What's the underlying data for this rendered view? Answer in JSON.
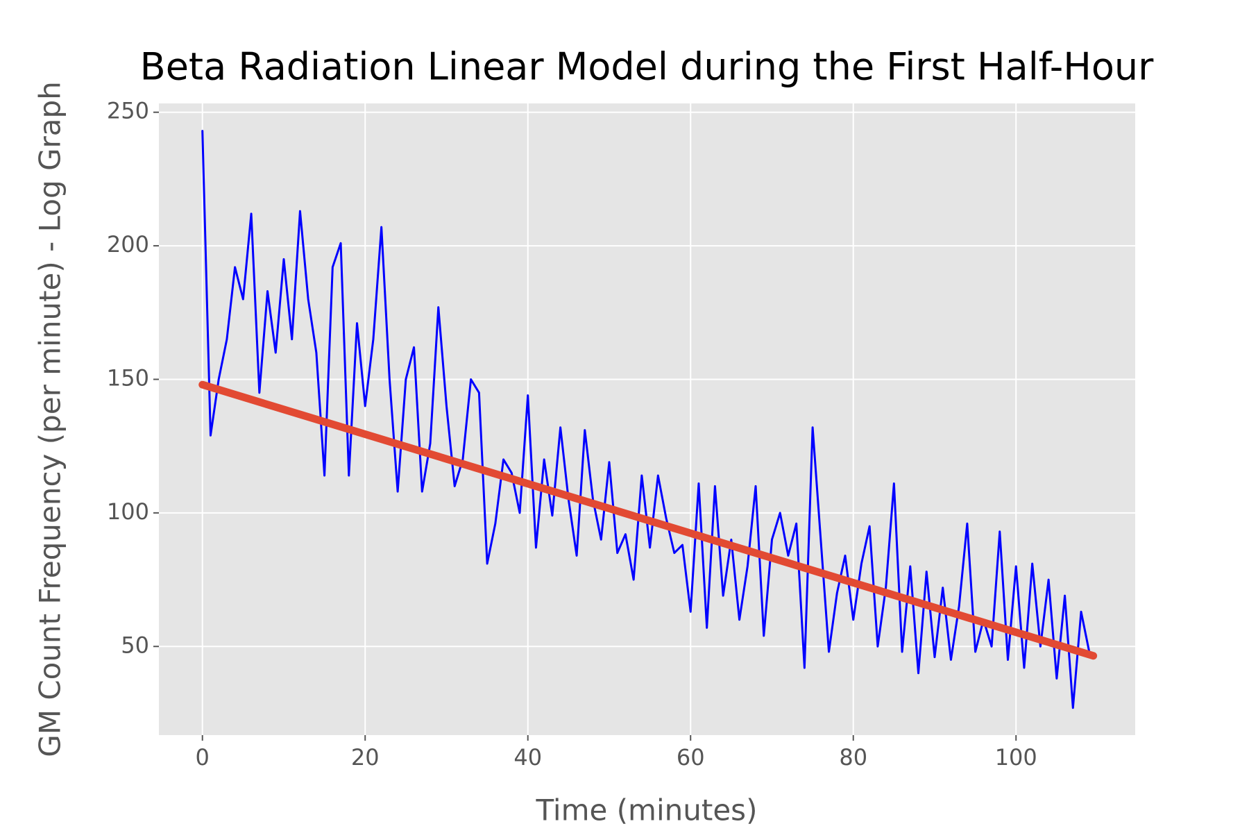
{
  "chart_data": {
    "type": "line",
    "title": "Beta Radiation Linear Model during the First Half-Hour",
    "x_label": "Time (minutes)",
    "y_label": "GM Count Frequency (per minute) - Log Graph",
    "xlim": [
      -5.35,
      114.65
    ],
    "xticks": [
      0,
      20,
      40,
      60,
      80,
      100
    ],
    "ylim": [
      16.8,
      253.3
    ],
    "yticks": [
      50,
      100,
      150,
      200,
      250
    ],
    "grid": true,
    "background": "#e5e5e5",
    "series": [
      {
        "color": "#0000ff",
        "width": 3,
        "x": [
          0,
          1,
          2,
          3,
          4,
          5,
          6,
          7,
          8,
          9,
          10,
          11,
          12,
          13,
          14,
          15,
          16,
          17,
          18,
          19,
          20,
          21,
          22,
          23,
          24,
          25,
          26,
          27,
          28,
          29,
          30,
          31,
          32,
          33,
          34,
          35,
          36,
          37,
          38,
          39,
          40,
          41,
          42,
          43,
          44,
          45,
          46,
          47,
          48,
          49,
          50,
          51,
          52,
          53,
          54,
          55,
          56,
          57,
          58,
          59,
          60,
          61,
          62,
          63,
          64,
          65,
          66,
          67,
          68,
          69,
          70,
          71,
          72,
          73,
          74,
          75,
          76,
          77,
          78,
          79,
          80,
          81,
          82,
          83,
          84,
          85,
          86,
          87,
          88,
          89,
          90,
          91,
          92,
          93,
          94,
          95,
          96,
          97,
          98,
          99,
          100,
          101,
          102,
          103,
          104,
          105,
          106,
          107,
          108,
          109
        ],
        "values": [
          243,
          129,
          150,
          165,
          192,
          180,
          212,
          145,
          183,
          160,
          195,
          165,
          213,
          180,
          160,
          114,
          192,
          201,
          114,
          171,
          140,
          165,
          207,
          150,
          108,
          150,
          162,
          108,
          126,
          177,
          140,
          110,
          120,
          150,
          145,
          81,
          96,
          120,
          115,
          100,
          144,
          87,
          120,
          99,
          132,
          105,
          84,
          131,
          105,
          90,
          119,
          85,
          92,
          75,
          114,
          87,
          114,
          98,
          85,
          88,
          63,
          111,
          57,
          110,
          69,
          90,
          60,
          80,
          110,
          54,
          90,
          100,
          84,
          96,
          42,
          132,
          90,
          48,
          70,
          84,
          60,
          81,
          95,
          50,
          72,
          111,
          48,
          80,
          40,
          78,
          46,
          72,
          45,
          65,
          96,
          48,
          60,
          50,
          93,
          45,
          80,
          42,
          81,
          50,
          75,
          38,
          69,
          27,
          63,
          48
        ]
      },
      {
        "color": "#e24a33",
        "width": 11,
        "x": [
          0,
          109.5
        ],
        "values": [
          148,
          46.5
        ]
      }
    ]
  }
}
